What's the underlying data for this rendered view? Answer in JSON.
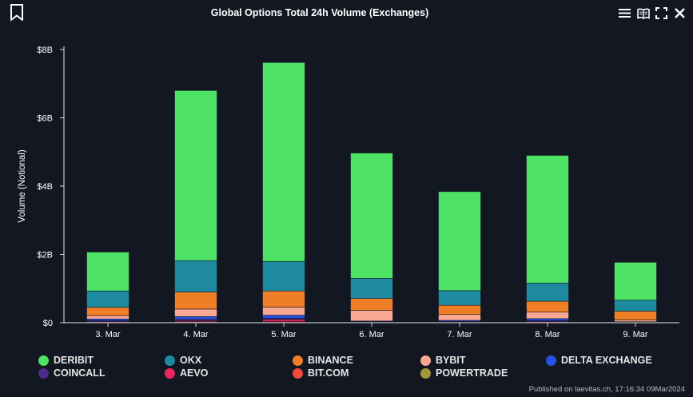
{
  "header": {
    "title": "Global Options Total 24h Volume (Exchanges)",
    "bookmark_icon": "bookmark-icon",
    "toolbar_icons": [
      "menu-icon",
      "book-icon",
      "fullscreen-icon",
      "close-icon"
    ]
  },
  "chart_data": {
    "type": "bar",
    "stacked": true,
    "title": "Global Options Total 24h Volume (Exchanges)",
    "xlabel": "",
    "ylabel": "Volume (Notional)",
    "ylim": [
      0,
      8
    ],
    "y_unit": "billions USD",
    "y_ticks": [
      "$0",
      "$2B",
      "$4B",
      "$6B",
      "$8B"
    ],
    "categories": [
      "3. Mar",
      "4. Mar",
      "5. Mar",
      "6. Mar",
      "7. Mar",
      "8. Mar",
      "9. Mar"
    ],
    "grid": false,
    "legend_position": "bottom",
    "series": [
      {
        "name": "DERIBIT",
        "color": "#4ee267",
        "values": [
          1.14,
          4.98,
          5.83,
          3.67,
          2.9,
          3.74,
          1.11
        ]
      },
      {
        "name": "OKX",
        "color": "#1e8aa0",
        "values": [
          0.48,
          0.92,
          0.86,
          0.59,
          0.43,
          0.53,
          0.32
        ]
      },
      {
        "name": "BINANCE",
        "color": "#ef7e26",
        "values": [
          0.24,
          0.5,
          0.47,
          0.35,
          0.27,
          0.32,
          0.26
        ]
      },
      {
        "name": "BYBIT",
        "color": "#f9a893",
        "values": [
          0.1,
          0.22,
          0.24,
          0.31,
          0.17,
          0.19,
          0.05
        ]
      },
      {
        "name": "DELTA EXCHANGE",
        "color": "#2851e7",
        "values": [
          0.05,
          0.08,
          0.09,
          0.02,
          0.03,
          0.06,
          0.01
        ]
      },
      {
        "name": "COINCALL",
        "color": "#4b2c86",
        "values": [
          0.03,
          0.04,
          0.04,
          0.01,
          0.02,
          0.03,
          0.01
        ]
      },
      {
        "name": "AEVO",
        "color": "#e8275e",
        "values": [
          0.02,
          0.03,
          0.06,
          0.01,
          0.01,
          0.02,
          0.01
        ]
      },
      {
        "name": "BIT.COM",
        "color": "#f04a40",
        "values": [
          0.01,
          0.02,
          0.02,
          0.01,
          0.01,
          0.01,
          0.0
        ]
      },
      {
        "name": "POWERTRADE",
        "color": "#a3983a",
        "values": [
          0.0,
          0.01,
          0.01,
          0.0,
          0.0,
          0.0,
          0.0
        ]
      }
    ]
  },
  "footer": {
    "credit": "Published on laevitas.ch, 17:16:34 09Mar2024"
  }
}
